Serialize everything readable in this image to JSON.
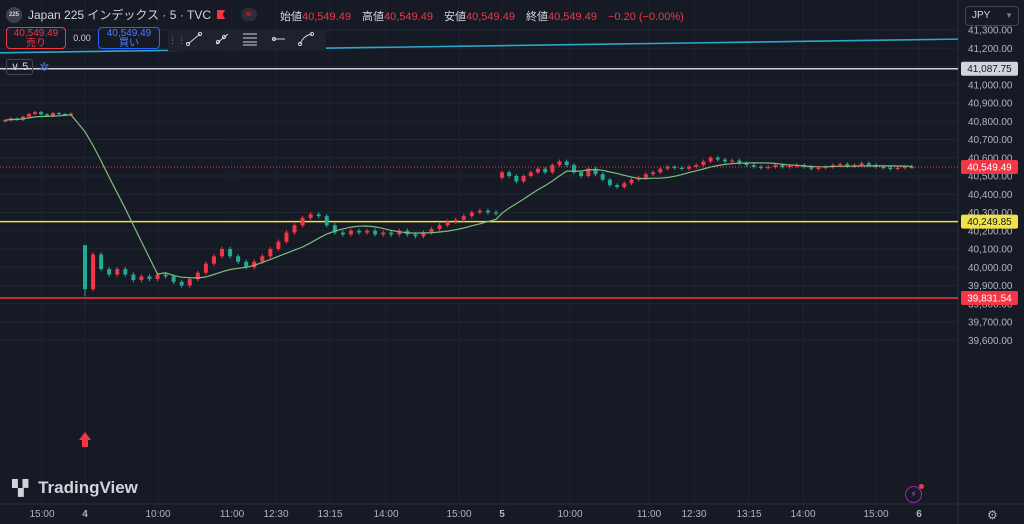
{
  "header": {
    "badge": "225",
    "title": "Japan 225 インデックス · 5 · TVC",
    "pill": "≈"
  },
  "ohlc": {
    "open_label": "始値",
    "open": "40,549.49",
    "high_label": "高値",
    "high": "40,549.49",
    "low_label": "安値",
    "low": "40,549.49",
    "close_label": "終値",
    "close": "40,549.49",
    "change": "−0.20 (−0.00%)"
  },
  "trade": {
    "sell_price": "40,549.49",
    "sell_label": "売り",
    "spread": "0.00",
    "buy_price": "40,549.49",
    "buy_label": "買い"
  },
  "tools": [
    "grip-icon",
    "trend-line-icon",
    "ray-icon",
    "fib-retracement-icon",
    "horizontal-ray-icon",
    "curve-icon"
  ],
  "indicator": {
    "label": "5",
    "chevron": "∨"
  },
  "currency": "JPY",
  "branding": "TradingView",
  "colors": {
    "background": "#161a25",
    "up": "#f23645",
    "down": "#22ab94",
    "ma": "#7cbf7e",
    "trendline": "#2ba8c9",
    "white_line": "#d1d4dc",
    "yellow_line": "#f2e24a",
    "red_line": "#f23645"
  },
  "chart_data": {
    "type": "candlestick",
    "ylim": [
      39515,
      41340
    ],
    "y_ticks": [
      "41,300.00",
      "41,200.00",
      "41,100.00",
      "41,000.00",
      "40,900.00",
      "40,800.00",
      "40,700.00",
      "40,600.00",
      "40,500.00",
      "40,400.00",
      "40,300.00",
      "40,200.00",
      "40,100.00",
      "40,000.00",
      "39,900.00",
      "39,800.00",
      "39,700.00",
      "39,600.00"
    ],
    "x_ticks": [
      "15:00",
      "4",
      "10:00",
      "11:00",
      "12:30",
      "13:15",
      "14:00",
      "15:00",
      "5",
      "10:00",
      "11:00",
      "12:30",
      "13:15",
      "14:00",
      "15:00",
      "6"
    ],
    "price_labels": [
      {
        "value": "41,087.75",
        "style": "white"
      },
      {
        "value": "40,549.49",
        "style": "red"
      },
      {
        "value": "40,249.85",
        "style": "yellow"
      },
      {
        "value": "39,831.54",
        "style": "red"
      }
    ],
    "horizontal_lines": [
      {
        "price": 41087.75,
        "style": "white"
      },
      {
        "price": 40249.85,
        "style": "yellow"
      },
      {
        "price": 39831.54,
        "style": "red"
      }
    ],
    "last_price": 40549.49,
    "trendline": {
      "from": 41175,
      "to": 41250
    },
    "moving_average_period": 5,
    "day1_candles": [
      40805,
      40815,
      40808,
      40825,
      40840,
      40850,
      40838,
      40830,
      40845,
      40840,
      40835,
      40842
    ],
    "day2_keypoints": [
      [
        0,
        39880
      ],
      [
        1,
        40070
      ],
      [
        2,
        39990
      ],
      [
        3,
        39960
      ],
      [
        4,
        39990
      ],
      [
        5,
        39960
      ],
      [
        6,
        39930
      ],
      [
        7,
        39950
      ],
      [
        8,
        39935
      ],
      [
        9,
        39960
      ],
      [
        10,
        39950
      ],
      [
        11,
        39920
      ],
      [
        12,
        39900
      ],
      [
        13,
        39935
      ],
      [
        14,
        39970
      ],
      [
        15,
        40020
      ],
      [
        16,
        40060
      ],
      [
        17,
        40100
      ],
      [
        18,
        40060
      ],
      [
        19,
        40030
      ],
      [
        20,
        40000
      ],
      [
        21,
        40030
      ],
      [
        22,
        40060
      ],
      [
        23,
        40100
      ],
      [
        24,
        40140
      ],
      [
        25,
        40190
      ],
      [
        26,
        40230
      ],
      [
        27,
        40270
      ],
      [
        28,
        40290
      ],
      [
        29,
        40280
      ],
      [
        30,
        40230
      ],
      [
        31,
        40190
      ],
      [
        32,
        40180
      ],
      [
        33,
        40200
      ],
      [
        34,
        40190
      ],
      [
        35,
        40200
      ],
      [
        36,
        40180
      ],
      [
        37,
        40190
      ],
      [
        38,
        40180
      ],
      [
        39,
        40200
      ],
      [
        40,
        40180
      ],
      [
        41,
        40170
      ],
      [
        42,
        40190
      ],
      [
        43,
        40210
      ],
      [
        44,
        40230
      ],
      [
        45,
        40250
      ],
      [
        46,
        40260
      ],
      [
        47,
        40280
      ],
      [
        48,
        40300
      ],
      [
        49,
        40310
      ],
      [
        50,
        40300
      ],
      [
        51,
        40295
      ]
    ],
    "day3_keypoints": [
      [
        0,
        40520
      ],
      [
        1,
        40500
      ],
      [
        2,
        40470
      ],
      [
        3,
        40500
      ],
      [
        4,
        40520
      ],
      [
        5,
        40540
      ],
      [
        6,
        40520
      ],
      [
        7,
        40560
      ],
      [
        8,
        40580
      ],
      [
        9,
        40560
      ],
      [
        10,
        40520
      ],
      [
        11,
        40500
      ],
      [
        12,
        40540
      ],
      [
        13,
        40510
      ],
      [
        14,
        40480
      ],
      [
        15,
        40450
      ],
      [
        16,
        40440
      ],
      [
        17,
        40460
      ],
      [
        18,
        40480
      ],
      [
        19,
        40490
      ],
      [
        20,
        40510
      ],
      [
        21,
        40520
      ],
      [
        22,
        40540
      ],
      [
        23,
        40550
      ],
      [
        24,
        40545
      ],
      [
        25,
        40540
      ],
      [
        26,
        40550
      ],
      [
        27,
        40560
      ],
      [
        28,
        40580
      ],
      [
        29,
        40600
      ],
      [
        30,
        40590
      ],
      [
        31,
        40580
      ],
      [
        32,
        40585
      ],
      [
        33,
        40570
      ],
      [
        34,
        40560
      ],
      [
        35,
        40550
      ],
      [
        36,
        40545
      ],
      [
        37,
        40550
      ],
      [
        38,
        40560
      ],
      [
        39,
        40550
      ],
      [
        40,
        40555
      ],
      [
        41,
        40560
      ],
      [
        42,
        40550
      ],
      [
        43,
        40540
      ],
      [
        44,
        40545
      ],
      [
        45,
        40550
      ],
      [
        46,
        40560
      ],
      [
        47,
        40565
      ],
      [
        48,
        40555
      ],
      [
        49,
        40560
      ],
      [
        50,
        40570
      ],
      [
        51,
        40560
      ],
      [
        52,
        40550
      ],
      [
        53,
        40545
      ],
      [
        54,
        40540
      ],
      [
        55,
        40545
      ],
      [
        56,
        40550
      ],
      [
        57,
        40549.49
      ]
    ]
  }
}
